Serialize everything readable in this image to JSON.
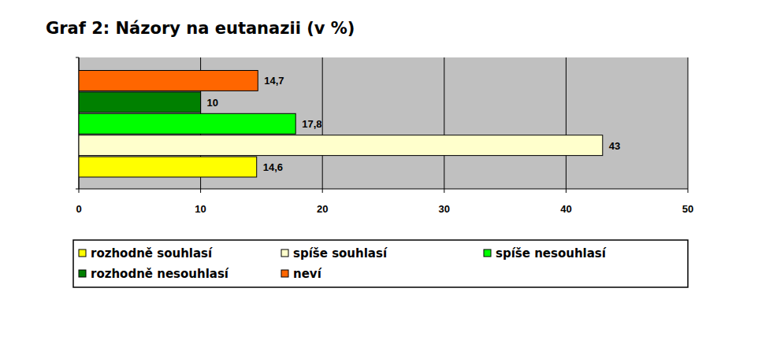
{
  "chart_data": {
    "type": "bar",
    "title": "Graf 2: Názory na eutanazii (v %)",
    "orientation": "horizontal",
    "categories": [
      "rozhodně souhlasí",
      "spíše souhlasí",
      "spíše nesouhlasí",
      "rozhodně nesouhlasí",
      "neví"
    ],
    "values": [
      14.6,
      43,
      17.8,
      10,
      14.7
    ],
    "value_labels": [
      "14,6",
      "43",
      "17,8",
      "10",
      "14,7"
    ],
    "colors": [
      "#ffff00",
      "#ffffcc",
      "#00ff00",
      "#008000",
      "#ff6600"
    ],
    "xlim": [
      0,
      50
    ],
    "xticks": [
      0,
      10,
      20,
      30,
      40,
      50
    ],
    "grid": true,
    "legend": "bottom",
    "data_labels": true,
    "tick_labels": "x"
  }
}
